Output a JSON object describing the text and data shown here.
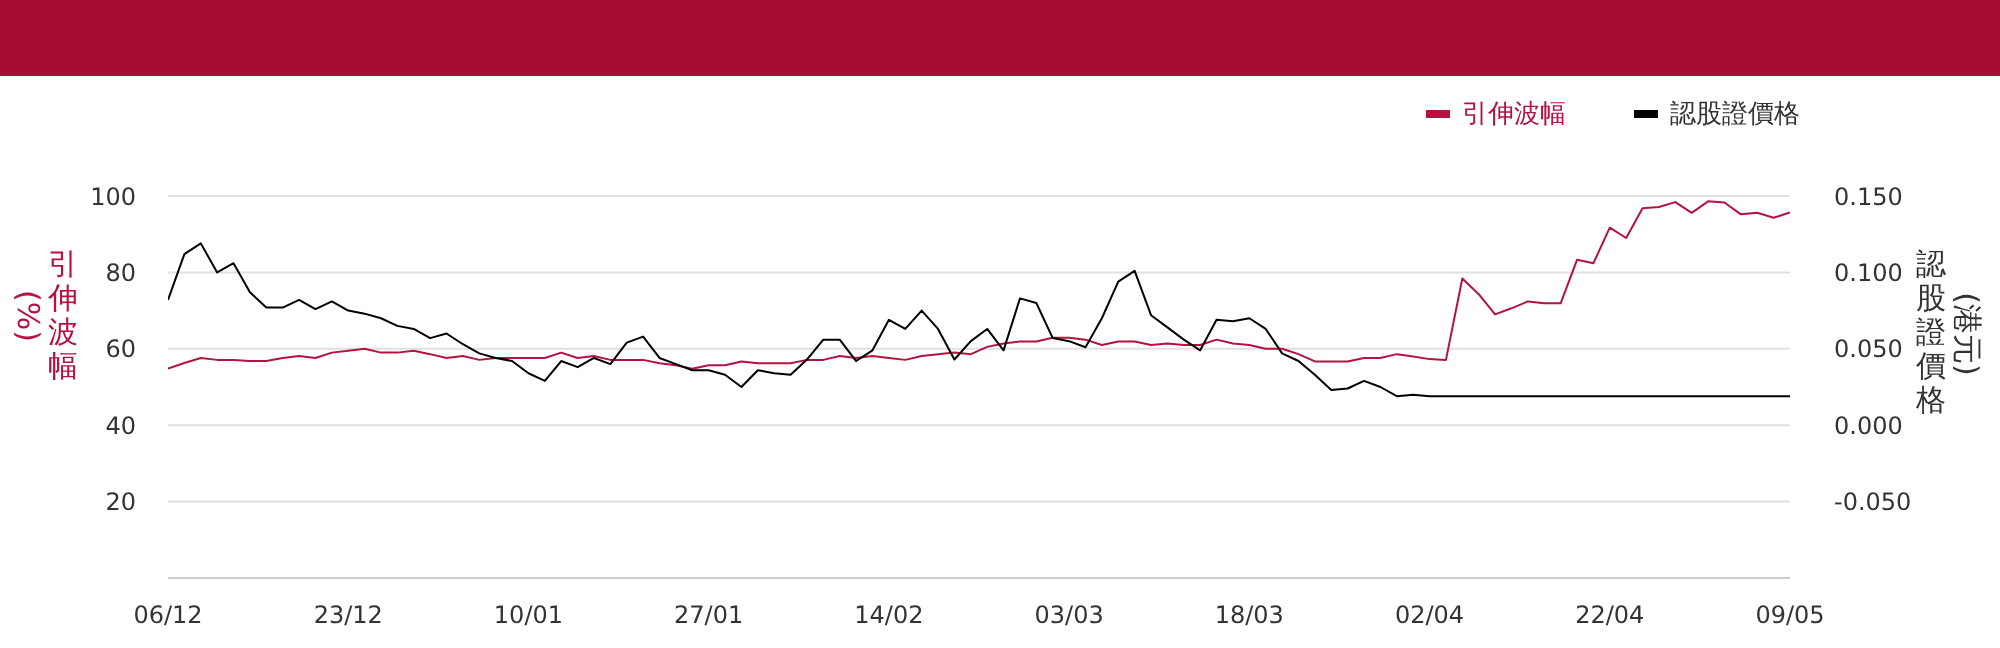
{
  "chart_data": {
    "type": "line",
    "ylabel": "引伸波幅(%)",
    "y2label": "認股證價格(港元)",
    "categories": [
      "06/12",
      null,
      null,
      null,
      null,
      null,
      null,
      null,
      null,
      null,
      null,
      "23/12",
      null,
      null,
      null,
      null,
      null,
      null,
      null,
      null,
      null,
      null,
      "10/01",
      null,
      null,
      null,
      null,
      null,
      null,
      null,
      null,
      null,
      null,
      "27/01",
      null,
      null,
      null,
      null,
      null,
      null,
      null,
      null,
      null,
      null,
      "14/02",
      null,
      null,
      null,
      null,
      null,
      null,
      null,
      null,
      null,
      null,
      "03/03",
      null,
      null,
      null,
      null,
      null,
      null,
      null,
      null,
      null,
      null,
      "18/03",
      null,
      null,
      null,
      null,
      null,
      null,
      null,
      null,
      null,
      null,
      "02/04",
      null,
      null,
      null,
      null,
      null,
      null,
      null,
      null,
      null,
      null,
      "22/04",
      null,
      null,
      null,
      null,
      null,
      null,
      null,
      null,
      null,
      null,
      "09/05"
    ],
    "series": [
      {
        "name": "引伸波幅",
        "color": "#b5123f",
        "values": [
          54.8,
          56.3,
          57.6,
          57.1,
          57.1,
          56.8,
          56.8,
          57.6,
          58.1,
          57.6,
          59.0,
          59.5,
          60.0,
          59.0,
          59.0,
          59.5,
          58.6,
          57.6,
          58.1,
          57.1,
          57.6,
          57.6,
          57.6,
          57.6,
          59.0,
          57.6,
          58.1,
          57.1,
          57.1,
          57.1,
          56.2,
          55.7,
          54.8,
          55.7,
          55.7,
          56.7,
          56.2,
          56.2,
          56.2,
          57.1,
          57.1,
          58.1,
          57.6,
          58.1,
          57.6,
          57.1,
          58.1,
          58.6,
          59.0,
          58.6,
          60.5,
          61.4,
          61.9,
          61.9,
          62.9,
          62.9,
          62.4,
          61.0,
          61.9,
          61.9,
          61.0,
          61.4,
          61.0,
          61.0,
          62.4,
          61.4,
          61.0,
          60.0,
          60.0,
          58.6,
          56.7,
          56.7,
          56.7,
          57.6,
          57.6,
          58.6,
          58.0,
          57.3,
          57.1,
          78.4,
          74.3,
          69.0,
          70.6,
          72.4,
          71.9,
          71.9,
          83.3,
          82.4,
          91.7,
          89.0,
          96.8,
          97.1,
          98.4,
          95.6,
          98.6,
          98.3,
          95.2,
          95.6,
          94.3,
          95.7
        ]
      },
      {
        "name": "認股證價格",
        "color": "#000000",
        "axis": "y2",
        "values": [
          0.082,
          0.112,
          0.119,
          0.1,
          0.106,
          0.087,
          0.077,
          0.077,
          0.082,
          0.076,
          0.081,
          0.075,
          0.073,
          0.07,
          0.065,
          0.063,
          0.057,
          0.06,
          0.053,
          0.047,
          0.044,
          0.042,
          0.034,
          0.029,
          0.042,
          0.038,
          0.044,
          0.04,
          0.054,
          0.058,
          0.044,
          0.04,
          0.036,
          0.036,
          0.033,
          0.025,
          0.036,
          0.034,
          0.033,
          0.043,
          0.056,
          0.056,
          0.042,
          0.049,
          0.069,
          0.063,
          0.075,
          0.063,
          0.043,
          0.055,
          0.063,
          0.049,
          0.083,
          0.08,
          0.057,
          0.055,
          0.051,
          0.07,
          0.094,
          0.101,
          0.072,
          0.064,
          0.056,
          0.049,
          0.069,
          0.068,
          0.07,
          0.063,
          0.047,
          0.042,
          0.033,
          0.023,
          0.024,
          0.029,
          0.025,
          0.019,
          0.02,
          0.019,
          0.019,
          0.019,
          0.019,
          0.019,
          0.019,
          0.019,
          0.019,
          0.019,
          0.019,
          0.019,
          0.019,
          0.019,
          0.019,
          0.019,
          0.019,
          0.019,
          0.019,
          0.019,
          0.019,
          0.019,
          0.019,
          0.019
        ]
      }
    ],
    "ylim": [
      0,
      100
    ],
    "yticks": [
      20,
      40,
      60,
      80,
      100
    ],
    "y2lim": [
      -0.1,
      0.15
    ],
    "y2ticks": [
      {
        "value": -0.05,
        "label": "-0.050"
      },
      {
        "value": 0,
        "label": "0.000"
      },
      {
        "value": 0.05,
        "label": "0.050"
      },
      {
        "value": 0.1,
        "label": "0.100"
      },
      {
        "value": 0.15,
        "label": "0.150"
      }
    ],
    "grid": "y",
    "legend": "top right",
    "marker": "none",
    "line_style": "solid"
  }
}
